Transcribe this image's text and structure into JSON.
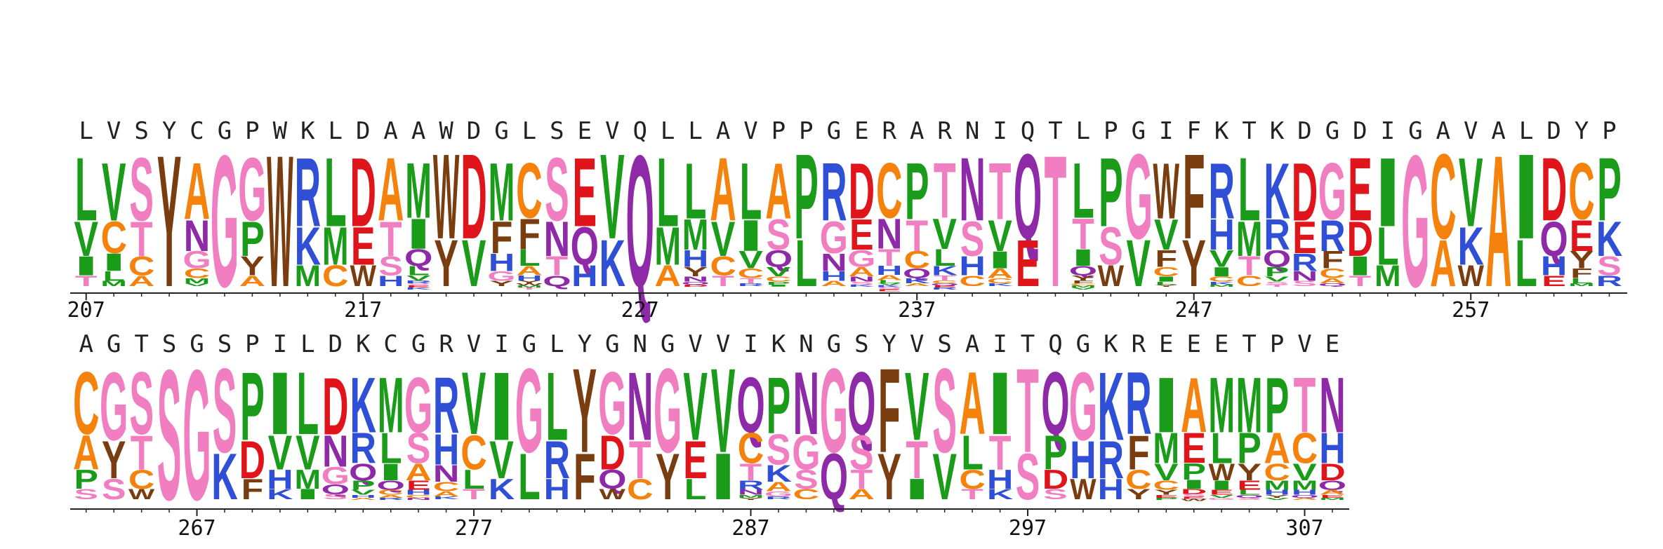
{
  "logo": {
    "type": "sequence-logo",
    "colors": {
      "hydrophobic": "#1a9c1a",
      "acidic": "#e0151b",
      "basic": "#2f4fd6",
      "polar": "#8e2aa8",
      "aromatic": "#7a3d10",
      "glycine_serine_threonine": "#f07ec0",
      "alanine_cysteine": "#f5820d",
      "default": "#777777"
    },
    "rows": [
      {
        "start": 207,
        "tick_labels": [
          "207",
          "217",
          "227",
          "237",
          "247",
          "257"
        ],
        "consensus": "LVSYCGPWKLDAAWDGLSEVQLLAVPPGERARNIQTLPGIFKTKDGDIGAVALDYP",
        "stacks": [
          [
            "L",
            "V",
            "I",
            "T"
          ],
          [
            "V",
            "C",
            "I",
            "L",
            "M"
          ],
          [
            "S",
            "T",
            "C",
            "A"
          ],
          [
            "Y"
          ],
          [
            "A",
            "N",
            "G",
            "C",
            "M",
            "V"
          ],
          [
            "G"
          ],
          [
            "G",
            "P",
            "Y",
            "A"
          ],
          [
            "W"
          ],
          [
            "R",
            "K",
            "M"
          ],
          [
            "L",
            "M",
            "C"
          ],
          [
            "D",
            "E",
            "W"
          ],
          [
            "A",
            "T",
            "S",
            "H"
          ],
          [
            "M",
            "I",
            "Q",
            "L",
            "V",
            "R",
            "S",
            "E",
            "K"
          ],
          [
            "W",
            "Y"
          ],
          [
            "D",
            "V"
          ],
          [
            "M",
            "F",
            "H",
            "G",
            "Y"
          ],
          [
            "C",
            "F",
            "L",
            "A",
            "H",
            "Y",
            "W",
            "M",
            "T"
          ],
          [
            "S",
            "N",
            "T",
            "Q"
          ],
          [
            "E",
            "Q",
            "H"
          ],
          [
            "V",
            "K"
          ],
          [
            "Q"
          ],
          [
            "L",
            "M",
            "A"
          ],
          [
            "L",
            "M",
            "H",
            "Y",
            "N",
            "Q",
            "D"
          ],
          [
            "A",
            "V",
            "C",
            "T"
          ],
          [
            "L",
            "I",
            "V",
            "C",
            "T",
            "R"
          ],
          [
            "A",
            "S",
            "Q",
            "V",
            "C",
            "P",
            "I"
          ],
          [
            "P",
            "L"
          ],
          [
            "R",
            "G",
            "N",
            "H",
            "A"
          ],
          [
            "D",
            "E",
            "G",
            "A",
            "N",
            "S",
            "K"
          ],
          [
            "C",
            "N",
            "T",
            "H",
            "A",
            "L",
            "V",
            "K",
            "S",
            "E"
          ],
          [
            "P",
            "T",
            "C",
            "Q",
            "K",
            "A"
          ],
          [
            "T",
            "V",
            "L",
            "K",
            "T",
            "C",
            "Q",
            "E",
            "R"
          ],
          [
            "N",
            "S",
            "H",
            "C"
          ],
          [
            "T",
            "V",
            "I",
            "A",
            "C",
            "K"
          ],
          [
            "Q",
            "E"
          ],
          [
            "T"
          ],
          [
            "L",
            "T",
            "I",
            "Q",
            "Y",
            "F",
            "C",
            "M",
            "V"
          ],
          [
            "P",
            "S",
            "W"
          ],
          [
            "G",
            "V"
          ],
          [
            "W",
            "V",
            "F",
            "C",
            "I",
            "L",
            "Y"
          ],
          [
            "F",
            "Y"
          ],
          [
            "R",
            "H",
            "V",
            "I",
            "C",
            "K",
            "M"
          ],
          [
            "L",
            "M",
            "T",
            "C"
          ],
          [
            "K",
            "R",
            "Q",
            "P",
            "V",
            "S",
            "T"
          ],
          [
            "D",
            "E",
            "R",
            "N",
            "S"
          ],
          [
            "G",
            "R",
            "F",
            "C",
            "A",
            "Q"
          ],
          [
            "E",
            "D",
            "I",
            "T"
          ],
          [
            "I",
            "L",
            "M"
          ],
          [
            "G"
          ],
          [
            "C",
            "A"
          ],
          [
            "V",
            "K",
            "W"
          ],
          [
            "A"
          ],
          [
            "I",
            "L"
          ],
          [
            "D",
            "Q",
            "H",
            "E"
          ],
          [
            "C",
            "E",
            "Y",
            "F",
            "L",
            "M"
          ],
          [
            "P",
            "K",
            "S",
            "R"
          ]
        ]
      },
      {
        "start": 263,
        "tick_labels": [
          "267",
          "277",
          "287",
          "297",
          "307"
        ],
        "consensus": "AGTSGSPILDKCGRVIGLYGNGVVIKNGSYVSAITQGKREEETPVE",
        "stacks": [
          [
            "C",
            "A",
            "P",
            "S"
          ],
          [
            "G",
            "Y",
            "S"
          ],
          [
            "S",
            "T",
            "C",
            "W"
          ],
          [
            "S"
          ],
          [
            "G"
          ],
          [
            "S",
            "K"
          ],
          [
            "P",
            "D",
            "F"
          ],
          [
            "I",
            "V",
            "H",
            "K"
          ],
          [
            "L",
            "V",
            "M",
            "I"
          ],
          [
            "D",
            "N",
            "G",
            "Q",
            "S"
          ],
          [
            "K",
            "R",
            "Q",
            "P",
            "V",
            "H",
            "A"
          ],
          [
            "M",
            "L",
            "I",
            "Q",
            "C",
            "A",
            "R"
          ],
          [
            "G",
            "S",
            "A",
            "E",
            "H",
            "C",
            "N"
          ],
          [
            "R",
            "H",
            "N",
            "C",
            "A",
            "K"
          ],
          [
            "V",
            "C",
            "L",
            "T"
          ],
          [
            "I",
            "V",
            "K"
          ],
          [
            "G",
            "L"
          ],
          [
            "L",
            "R",
            "H"
          ],
          [
            "Y",
            "F"
          ],
          [
            "G",
            "D",
            "Q",
            "W"
          ],
          [
            "N",
            "T",
            "C"
          ],
          [
            "G",
            "Y"
          ],
          [
            "V",
            "E",
            "L"
          ],
          [
            "V",
            "I"
          ],
          [
            "Q",
            "C",
            "T",
            "R",
            "N",
            "M",
            "Y"
          ],
          [
            "P",
            "S",
            "K",
            "A",
            "G",
            "R"
          ],
          [
            "N",
            "G",
            "S",
            "C"
          ],
          [
            "G",
            "Q"
          ],
          [
            "Q",
            "S",
            "T",
            "A"
          ],
          [
            "F",
            "Y"
          ],
          [
            "V",
            "T",
            "I"
          ],
          [
            "S",
            "V"
          ],
          [
            "A",
            "L",
            "C",
            "T"
          ],
          [
            "I",
            "T",
            "H",
            "K"
          ],
          [
            "T",
            "S"
          ],
          [
            "Q",
            "P",
            "D",
            "S"
          ],
          [
            "G",
            "H",
            "W"
          ],
          [
            "K",
            "R",
            "H"
          ],
          [
            "R",
            "F",
            "C",
            "Y"
          ],
          [
            "I",
            "M",
            "V",
            "C",
            "Y",
            "E",
            "P"
          ],
          [
            "A",
            "E",
            "P",
            "I",
            "D",
            "S",
            "E",
            "W"
          ],
          [
            "M",
            "L",
            "W",
            "I",
            "E",
            "V",
            "G"
          ],
          [
            "M",
            "P",
            "Y",
            "E",
            "L",
            "Q",
            "S"
          ],
          [
            "P",
            "A",
            "C",
            "M",
            "H",
            "Y",
            "V"
          ],
          [
            "T",
            "C",
            "V",
            "M",
            "H",
            "Q",
            "A"
          ],
          [
            "N",
            "H",
            "D",
            "Q",
            "A",
            "E",
            "M"
          ]
        ]
      }
    ]
  }
}
